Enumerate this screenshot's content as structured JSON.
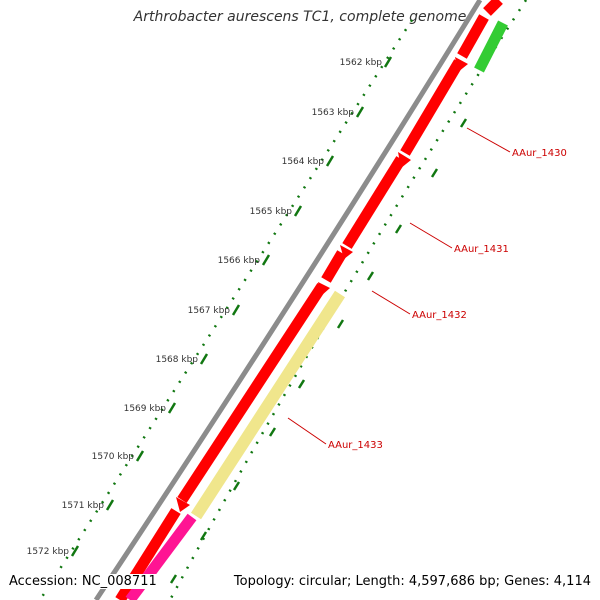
{
  "title": "Arthrobacter aurescens TC1, complete genome",
  "footer": {
    "accession": "Accession: NC_008711",
    "summary": "Topology: circular; Length: 4,597,686 bp; Genes: 4,114"
  },
  "colors": {
    "backbone": "#888888",
    "cds": "#ff0000",
    "cds_dark": "#b00000",
    "green_feature": "#33cc33",
    "yellow_feature": "#f0e68c",
    "pink_feature": "#ff1493",
    "ruler": "#117711",
    "gene_label": "#cc0000"
  },
  "ticks": [
    {
      "label": "1562 kbp"
    },
    {
      "label": "1563 kbp"
    },
    {
      "label": "1564 kbp"
    },
    {
      "label": "1565 kbp"
    },
    {
      "label": "1566 kbp"
    },
    {
      "label": "1567 kbp"
    },
    {
      "label": "1568 kbp"
    },
    {
      "label": "1569 kbp"
    },
    {
      "label": "1570 kbp"
    },
    {
      "label": "1571 kbp"
    },
    {
      "label": "1572 kbp"
    }
  ],
  "genes": [
    {
      "label": "AAur_1430"
    },
    {
      "label": "AAur_1431"
    },
    {
      "label": "AAur_1432"
    },
    {
      "label": "AAur_1433"
    }
  ]
}
